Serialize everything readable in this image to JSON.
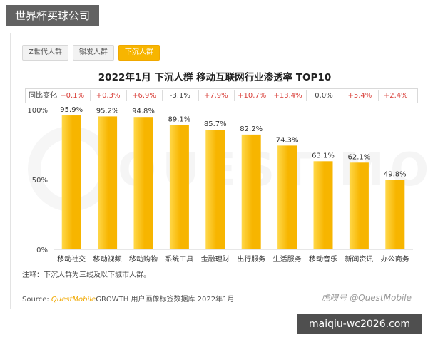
{
  "site_tag": "世界杯买球公司",
  "site_url": "maiqiu-wc2026.com",
  "tabs": [
    {
      "label": "Z世代人群",
      "active": false
    },
    {
      "label": "银发人群",
      "active": false
    },
    {
      "label": "下沉人群",
      "active": true
    }
  ],
  "yoy": {
    "label": "同比变化",
    "values": [
      "+0.1%",
      "+0.3%",
      "+6.9%",
      "-3.1%",
      "+7.9%",
      "+10.7%",
      "+13.4%",
      "0.0%",
      "+5.4%",
      "+2.4%"
    ]
  },
  "note": "注释：下沉人群为三线及以下城市人群。",
  "source": {
    "prefix": "Source:",
    "brand": "QuestMobile",
    "rest": "GROWTH 用户画像标签数据库 2022年1月"
  },
  "footer_logos": "虎嗅号  @QuestMobile",
  "colors": {
    "bar": "#f7b500",
    "bar_light": "#ffd84a",
    "accent_up": "#d9403a"
  },
  "chart_data": {
    "type": "bar",
    "title": "2022年1月 下沉人群 移动互联网行业渗透率 TOP10",
    "categories": [
      "移动社交",
      "移动视频",
      "移动购物",
      "系统工具",
      "金融理财",
      "出行服务",
      "生活服务",
      "移动音乐",
      "新闻资讯",
      "办公商务"
    ],
    "values": [
      95.9,
      95.2,
      94.8,
      89.1,
      85.7,
      82.2,
      74.3,
      63.1,
      62.1,
      49.8
    ],
    "data_labels": [
      "95.9%",
      "95.2%",
      "94.8%",
      "89.1%",
      "85.7%",
      "82.2%",
      "74.3%",
      "63.1%",
      "62.1%",
      "49.8%"
    ],
    "ylim": [
      0,
      100
    ],
    "yticks": [
      0,
      50,
      100
    ],
    "ytick_labels": [
      "0%",
      "50%",
      "100%"
    ],
    "grid": false,
    "legend": "none"
  }
}
